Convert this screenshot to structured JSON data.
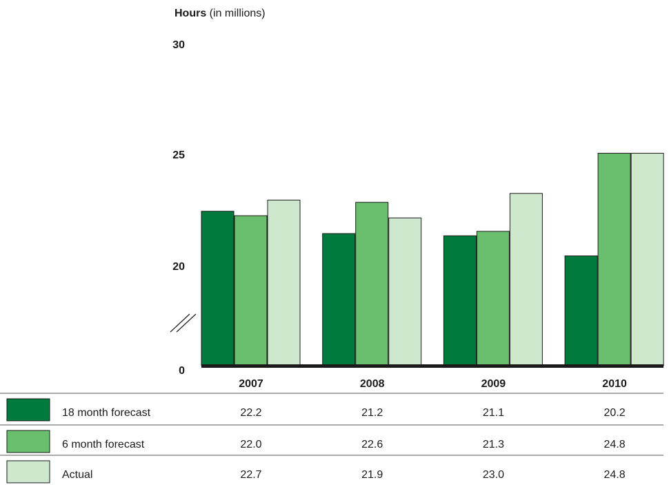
{
  "chart_data": {
    "type": "bar",
    "title_bold": "Hours",
    "title_rest": " (in millions)",
    "categories": [
      "2007",
      "2008",
      "2009",
      "2010"
    ],
    "y_ticks": [
      "30",
      "25",
      "20",
      "0"
    ],
    "ylim": [
      0,
      30
    ],
    "axis_break": true,
    "series": [
      {
        "name": "18 month forecast",
        "color": "#007a3d",
        "values": [
          22.2,
          21.2,
          21.1,
          20.2
        ],
        "labels": [
          "22.2",
          "21.2",
          "21.1",
          "20.2"
        ]
      },
      {
        "name": "6 month forecast",
        "color": "#6abf6e",
        "values": [
          22.0,
          22.6,
          21.3,
          24.8
        ],
        "labels": [
          "22.0",
          "22.6",
          "21.3",
          "24.8"
        ]
      },
      {
        "name": "Actual",
        "color": "#cde8cd",
        "values": [
          22.7,
          21.9,
          23.0,
          24.8
        ],
        "labels": [
          "22.7",
          "21.9",
          "23.0",
          "24.8"
        ]
      }
    ]
  }
}
